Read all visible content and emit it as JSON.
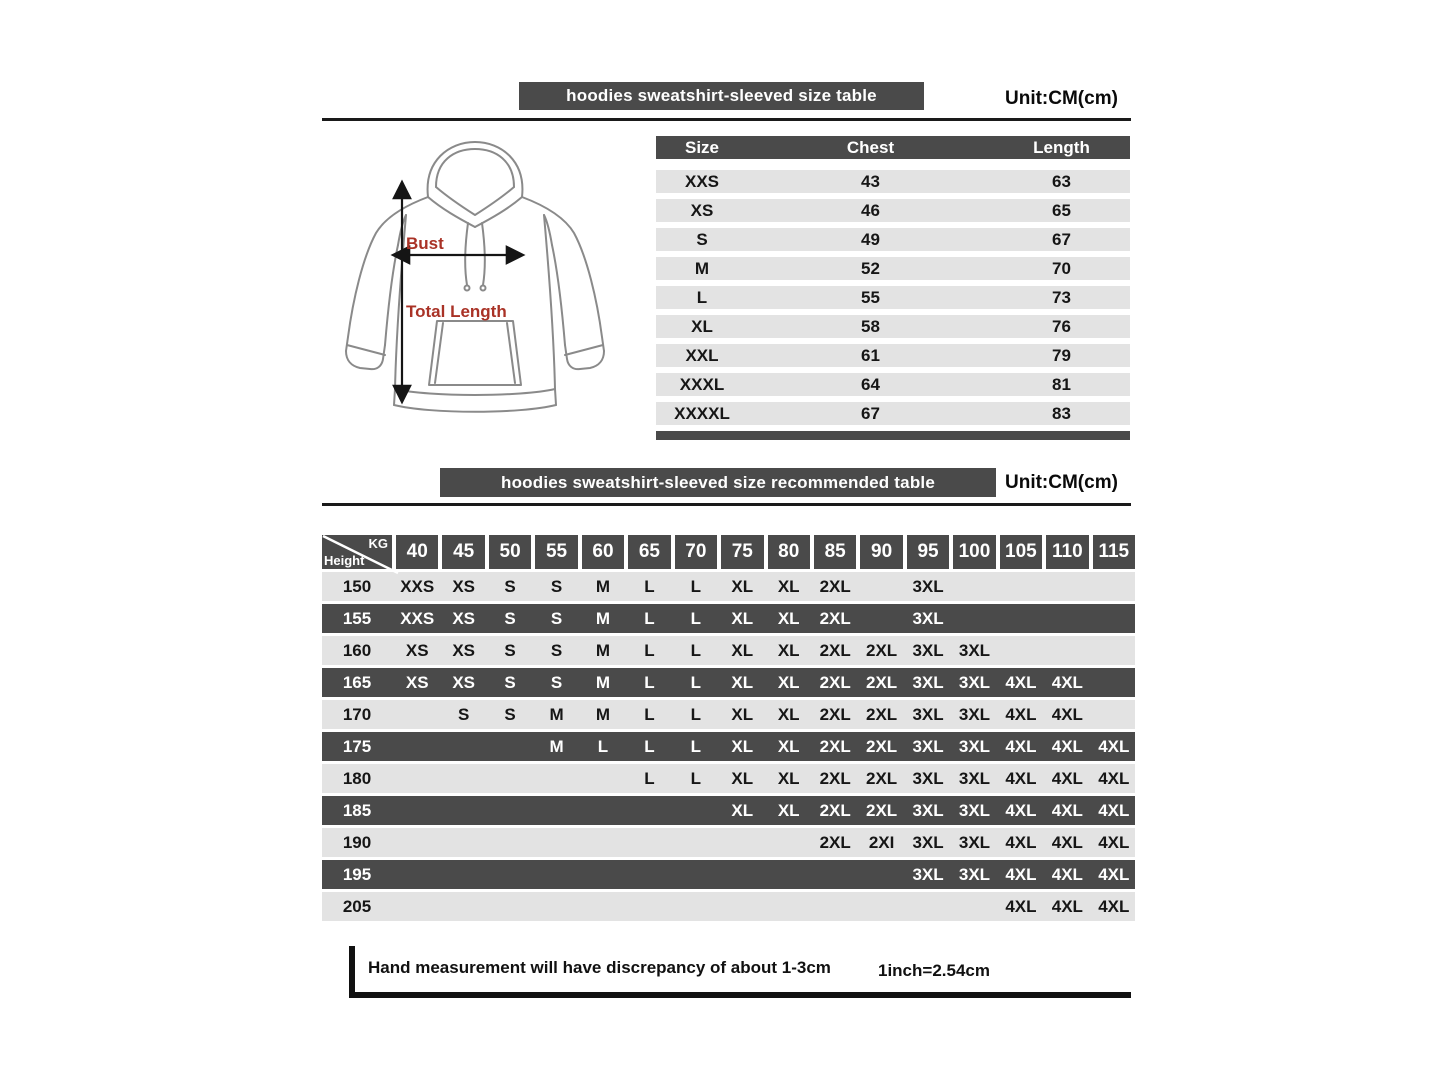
{
  "size_table": {
    "title": "hoodies sweatshirt-sleeved size  table",
    "unit": "Unit:CM(cm)",
    "columns": [
      "Size",
      "Chest",
      "Length"
    ],
    "rows": [
      {
        "size": "XXS",
        "chest": "43",
        "length": "63"
      },
      {
        "size": "XS",
        "chest": "46",
        "length": "65"
      },
      {
        "size": "S",
        "chest": "49",
        "length": "67"
      },
      {
        "size": "M",
        "chest": "52",
        "length": "70"
      },
      {
        "size": "L",
        "chest": "55",
        "length": "73"
      },
      {
        "size": "XL",
        "chest": "58",
        "length": "76"
      },
      {
        "size": "XXL",
        "chest": "61",
        "length": "79"
      },
      {
        "size": "XXXL",
        "chest": "64",
        "length": "81"
      },
      {
        "size": "XXXXL",
        "chest": "67",
        "length": "83"
      }
    ]
  },
  "diagram": {
    "bust_label": "Bust",
    "total_length_label": "Total Length"
  },
  "recommended": {
    "title": "hoodies sweatshirt-sleeved size recommended table",
    "unit": "Unit:CM(cm)",
    "corner_top": "KG",
    "corner_bottom": "Height",
    "weights": [
      "40",
      "45",
      "50",
      "55",
      "60",
      "65",
      "70",
      "75",
      "80",
      "85",
      "90",
      "95",
      "100",
      "105",
      "110",
      "115"
    ],
    "rows": [
      {
        "height": "150",
        "cells": [
          "XXS",
          "XS",
          "S",
          "S",
          "M",
          "L",
          "L",
          "XL",
          "XL",
          "2XL",
          "",
          "3XL",
          "",
          "",
          "",
          ""
        ]
      },
      {
        "height": "155",
        "cells": [
          "XXS",
          "XS",
          "S",
          "S",
          "M",
          "L",
          "L",
          "XL",
          "XL",
          "2XL",
          "",
          "3XL",
          "",
          "",
          "",
          ""
        ]
      },
      {
        "height": "160",
        "cells": [
          "XS",
          "XS",
          "S",
          "S",
          "M",
          "L",
          "L",
          "XL",
          "XL",
          "2XL",
          "2XL",
          "3XL",
          "3XL",
          "",
          "",
          ""
        ]
      },
      {
        "height": "165",
        "cells": [
          "XS",
          "XS",
          "S",
          "S",
          "M",
          "L",
          "L",
          "XL",
          "XL",
          "2XL",
          "2XL",
          "3XL",
          "3XL",
          "4XL",
          "4XL",
          ""
        ]
      },
      {
        "height": "170",
        "cells": [
          "",
          "S",
          "S",
          "M",
          "M",
          "L",
          "L",
          "XL",
          "XL",
          "2XL",
          "2XL",
          "3XL",
          "3XL",
          "4XL",
          "4XL",
          ""
        ]
      },
      {
        "height": "175",
        "cells": [
          "",
          "",
          "",
          "M",
          "L",
          "L",
          "L",
          "XL",
          "XL",
          "2XL",
          "2XL",
          "3XL",
          "3XL",
          "4XL",
          "4XL",
          "4XL"
        ]
      },
      {
        "height": "180",
        "cells": [
          "",
          "",
          "",
          "",
          "",
          "L",
          "L",
          "XL",
          "XL",
          "2XL",
          "2XL",
          "3XL",
          "3XL",
          "4XL",
          "4XL",
          "4XL"
        ]
      },
      {
        "height": "185",
        "cells": [
          "",
          "",
          "",
          "",
          "",
          "",
          "",
          "XL",
          "XL",
          "2XL",
          "2XL",
          "3XL",
          "3XL",
          "4XL",
          "4XL",
          "4XL"
        ]
      },
      {
        "height": "190",
        "cells": [
          "",
          "",
          "",
          "",
          "",
          "",
          "",
          "",
          "",
          "2XL",
          "2XI",
          "3XL",
          "3XL",
          "4XL",
          "4XL",
          "4XL"
        ]
      },
      {
        "height": "195",
        "cells": [
          "",
          "",
          "",
          "",
          "",
          "",
          "",
          "",
          "",
          "",
          "",
          "3XL",
          "3XL",
          "4XL",
          "4XL",
          "4XL"
        ]
      },
      {
        "height": "205",
        "cells": [
          "",
          "",
          "",
          "",
          "",
          "",
          "",
          "",
          "",
          "",
          "",
          "",
          "",
          "4XL",
          "4XL",
          "4XL"
        ]
      }
    ]
  },
  "footer": {
    "note": "Hand measurement will have discrepancy of about  1-3cm",
    "conversion": "1inch=2.54cm"
  },
  "colors": {
    "bar_dark": "#4a4a4a",
    "row_light": "#e3e3e3",
    "label_red": "#a93226",
    "line_black": "#1a1a1a"
  }
}
